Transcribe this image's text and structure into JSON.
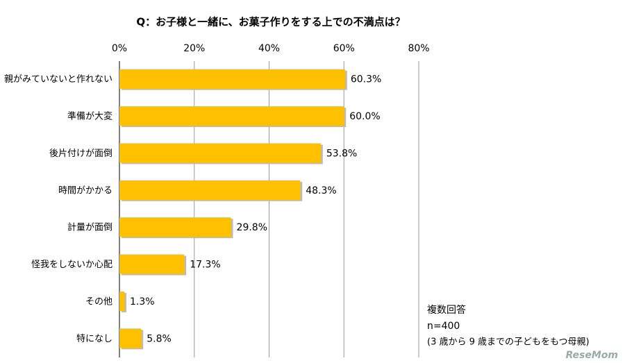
{
  "chart_data": {
    "type": "bar",
    "orientation": "horizontal",
    "title": "Q：お子様と一緒に、お菓子作りをする上での不満点は？",
    "categories": [
      "親がみていないと作れない",
      "準備が大変",
      "後片付けが面倒",
      "時間がかかる",
      "計量が面倒",
      "怪我をしないか心配",
      "その他",
      "特になし"
    ],
    "values": [
      60.3,
      60.0,
      53.8,
      48.3,
      29.8,
      17.3,
      1.3,
      5.8
    ],
    "value_labels": [
      "60.3%",
      "60.0%",
      "53.8%",
      "48.3%",
      "29.8%",
      "17.3%",
      "1.3%",
      "5.8%"
    ],
    "color": "#ffc000",
    "xlim": [
      0,
      80
    ],
    "xticks": [
      {
        "value": 0,
        "label": "0%"
      },
      {
        "value": 20,
        "label": "20%"
      },
      {
        "value": 40,
        "label": "40%"
      },
      {
        "value": 60,
        "label": "60%"
      },
      {
        "value": 80,
        "label": "80%"
      }
    ],
    "grid": true,
    "notes": [
      "複数回答",
      "n=400",
      "(3 歳から 9 歳までの子どもをもつ母親)"
    ],
    "watermark": "ReseMom"
  }
}
